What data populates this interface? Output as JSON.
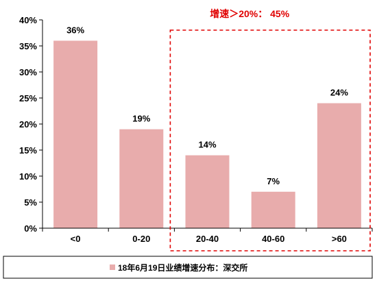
{
  "chart_data": {
    "type": "bar",
    "categories": [
      "<0",
      "0-20",
      "20-40",
      "40-60",
      ">60"
    ],
    "values": [
      36,
      19,
      14,
      7,
      24
    ],
    "value_labels": [
      "36%",
      "19%",
      "14%",
      "7%",
      "24%"
    ],
    "series": [
      {
        "name": "18年6月19日业绩增速分布：深交所",
        "values": [
          36,
          19,
          14,
          7,
          24
        ]
      }
    ],
    "y_ticks": [
      "0%",
      "5%",
      "10%",
      "15%",
      "20%",
      "25%",
      "30%",
      "35%",
      "40%"
    ],
    "ylim": [
      0,
      40
    ],
    "grid": false,
    "legend_position": "bottom",
    "annotation": {
      "text": "增速＞20%： 45%",
      "range": [
        "20-40",
        ">60"
      ]
    },
    "colors": {
      "bar": "#e8acac",
      "annotation": "#e00000",
      "axis": "#000000"
    }
  }
}
